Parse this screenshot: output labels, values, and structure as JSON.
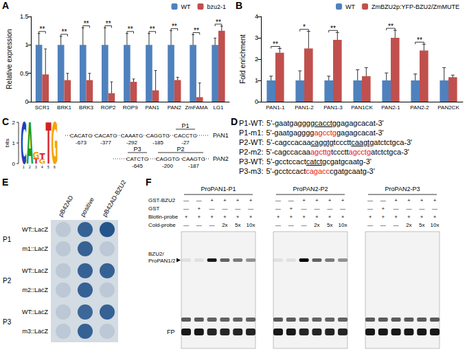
{
  "chart_data": [
    {
      "panel": "A",
      "type": "bar",
      "y_label": "Relative expression",
      "categories": [
        "SCR1",
        "BRK1",
        "BRK3",
        "ROP2",
        "ROP9",
        "PAN1",
        "PAN2",
        "ZmFAMA",
        "LG1"
      ],
      "series": [
        {
          "name": "WT",
          "color": "#4f81bd",
          "values": [
            1,
            1,
            1,
            1,
            1,
            1,
            1,
            1,
            1
          ],
          "errors": [
            0.2,
            0.15,
            0.3,
            0.3,
            0.2,
            0.2,
            0.25,
            0.18,
            0.12
          ]
        },
        {
          "name": "bzu2-1",
          "color": "#c0504d",
          "values": [
            0.48,
            0.38,
            0.38,
            0.15,
            0.35,
            0.2,
            0.38,
            0.08,
            1.25
          ],
          "errors": [
            0.45,
            0.12,
            0.12,
            0.2,
            0.05,
            0.35,
            0.05,
            0.25,
            0.08
          ]
        }
      ],
      "significance": [
        "**",
        "**",
        "**",
        "**",
        "**",
        "**",
        "**",
        "**",
        "**"
      ],
      "ylim": [
        0,
        1.5
      ],
      "yticks": [
        0,
        0.5,
        1,
        1.5
      ],
      "legend": "top",
      "grid": false
    },
    {
      "panel": "B",
      "type": "bar",
      "y_label": "Fold enrichment",
      "categories": [
        "PAN1-1",
        "PAN1-2",
        "PAN1-3",
        "PAN1CK",
        "PAN2-1",
        "PAN2-2",
        "PAN2CK"
      ],
      "series": [
        {
          "name": "WT",
          "color": "#4f81bd",
          "values": [
            1,
            1,
            1,
            1,
            1,
            1,
            1
          ],
          "errors": [
            0.2,
            0.45,
            0.2,
            0.5,
            0.35,
            0.3,
            0.6
          ]
        },
        {
          "name": "ZmBZU2p:YFP-BZU2/ZmMUTE",
          "color": "#c0504d",
          "values": [
            2.3,
            2.5,
            2.9,
            1.2,
            3.0,
            2.4,
            1.15
          ],
          "errors": [
            0.2,
            0.8,
            0.35,
            0.4,
            0.35,
            0.3,
            0.1
          ]
        }
      ],
      "significance": [
        "**",
        "*",
        "**",
        null,
        "**",
        "**",
        null
      ],
      "ylim": [
        0,
        4
      ],
      "yticks": [
        0,
        1,
        2,
        3,
        4
      ],
      "legend": "top",
      "grid": false
    }
  ],
  "panel_C": {
    "panel": "C",
    "logo": {
      "y_label": "bits",
      "ylim": [
        0,
        2
      ],
      "yticks": [
        0,
        1,
        2
      ],
      "positions": [
        {
          "index": 1,
          "letters": [
            {
              "letter": "C",
              "bits": 2
            }
          ]
        },
        {
          "index": 2,
          "letters": [
            {
              "letter": "A",
              "bits": 2
            }
          ]
        },
        {
          "index": 3,
          "letters": [
            {
              "letter": "T",
              "bits": 0.25
            },
            {
              "letter": "G",
              "bits": 0.35
            }
          ]
        },
        {
          "index": 4,
          "letters": [
            {
              "letter": "G",
              "bits": 0.2
            },
            {
              "letter": "T",
              "bits": 0.3
            }
          ]
        },
        {
          "index": 5,
          "letters": [
            {
              "letter": "T",
              "bits": 2
            }
          ]
        },
        {
          "index": 6,
          "letters": [
            {
              "letter": "G",
              "bits": 2
            }
          ]
        }
      ]
    },
    "promoters": [
      {
        "name": "PAN1",
        "motifs": [
          {
            "seq": "CACATG",
            "position": -673
          },
          {
            "seq": "CACATG",
            "position": -377
          },
          {
            "seq": "CAAATG",
            "position": -292
          },
          {
            "seq": "CAGGTG",
            "position": -185
          },
          {
            "seq": "CACCTG",
            "position": -27,
            "probe": "P1"
          }
        ]
      },
      {
        "name": "PAN2",
        "motifs": [
          {
            "seq": "CATCTG",
            "position": -645,
            "probe": "P3"
          },
          {
            "seq": "CAGGTG",
            "position": -200,
            "probe": "P2"
          },
          {
            "seq": "CAAGTG",
            "position": -187,
            "probe": "P2"
          }
        ]
      }
    ]
  },
  "panel_D": {
    "panel": "D",
    "lines": [
      {
        "label": "P1-WT:",
        "segments": [
          {
            "text": "5'-gaatgagggg"
          },
          {
            "text": "cacctg",
            "style": "underline"
          },
          {
            "text": "gagagcacat-3'"
          }
        ]
      },
      {
        "label": "P1-m1:",
        "segments": [
          {
            "text": "5'-gaatgagggg"
          },
          {
            "text": "agcctg",
            "style": "red"
          },
          {
            "text": "gagagcacat-3'"
          }
        ]
      },
      {
        "label": "P2-WT:",
        "segments": [
          {
            "text": "5'-cagccacaa"
          },
          {
            "text": "caggtg",
            "style": "underline"
          },
          {
            "text": "tccctt"
          },
          {
            "text": "caagtg",
            "style": "underline"
          },
          {
            "text": "atctctgca-3'"
          }
        ]
      },
      {
        "label": "P2-m2:",
        "segments": [
          {
            "text": "5'-cagccacaa"
          },
          {
            "text": "agcttg",
            "style": "red"
          },
          {
            "text": "tccctt"
          },
          {
            "text": "agcctg",
            "style": "red"
          },
          {
            "text": "atctctgca-3'"
          }
        ]
      },
      {
        "label": "P3-WT:",
        "segments": [
          {
            "text": "5'-gcctccact"
          },
          {
            "text": "catctg",
            "style": "underline"
          },
          {
            "text": "cgatgcaatg-3'"
          }
        ]
      },
      {
        "label": "P3-m3:",
        "segments": [
          {
            "text": "5'-gcctccact"
          },
          {
            "text": "cagacc",
            "style": "red"
          },
          {
            "text": "cgatgcaatg-3'"
          }
        ]
      }
    ]
  },
  "panel_E": {
    "panel": "E",
    "columns": [
      "pB42AD",
      "positive",
      "pB42AD-BZU2"
    ],
    "groups": [
      {
        "label": "P1",
        "rows": [
          {
            "label": "WT::LacZ",
            "spots": [
              0.1,
              0.9,
              1
            ]
          },
          {
            "label": "m1::LacZ",
            "spots": [
              0.1,
              0.9,
              0.1
            ]
          }
        ]
      },
      {
        "label": "P2",
        "rows": [
          {
            "label": "WT::LacZ",
            "spots": [
              0.1,
              0.9,
              0.9
            ]
          },
          {
            "label": "m2::LacZ",
            "spots": [
              0.1,
              0.9,
              0.1
            ]
          }
        ]
      },
      {
        "label": "P3",
        "rows": [
          {
            "label": "WT::LacZ",
            "spots": [
              0.1,
              0.85,
              0.9
            ]
          },
          {
            "label": "m3::LacZ",
            "spots": [
              0.1,
              0.9,
              0.1
            ]
          }
        ]
      }
    ]
  },
  "panel_F": {
    "panel": "F",
    "row_labels": [
      "GST-BZU2",
      "GST",
      "Biotin-probe",
      "Cold-probe"
    ],
    "shift_label": [
      "BZU2/",
      "ProPAN1/2"
    ],
    "free_probe_label": "FP",
    "gels": [
      {
        "title": "ProPAN1-P1",
        "lanes": [
          [
            "—",
            "—",
            "+",
            "+",
            "+",
            "+"
          ],
          [
            "—",
            "+",
            "—",
            "—",
            "—",
            "—"
          ],
          [
            "+",
            "+",
            "+",
            "+",
            "+",
            "+"
          ],
          [
            "—",
            "—",
            "—",
            "2x",
            "5x",
            "10x"
          ]
        ],
        "shift_band": [
          0.08,
          0.08,
          0.9,
          0.6,
          0.5,
          0.4
        ],
        "free_probe": [
          0.9,
          0.9,
          0.85,
          0.85,
          0.85,
          0.85
        ]
      },
      {
        "title": "ProPAN2-P2",
        "lanes": [
          [
            "—",
            "—",
            "+",
            "+",
            "+",
            "+"
          ],
          [
            "—",
            "+",
            "—",
            "—",
            "—",
            "—"
          ],
          [
            "+",
            "+",
            "+",
            "+",
            "+",
            "+"
          ],
          [
            "—",
            "—",
            "—",
            "2x",
            "5x",
            "10x"
          ]
        ],
        "shift_band": [
          0.08,
          0.08,
          1,
          0.6,
          0.5,
          0.4
        ],
        "free_probe": [
          0.9,
          0.9,
          0.85,
          0.85,
          0.85,
          0.85
        ]
      },
      {
        "title": "ProPAN2-P3",
        "lanes": [
          [
            "—",
            "—",
            "+",
            "+",
            "+",
            "+"
          ],
          [
            "—",
            "+",
            "—",
            "—",
            "—",
            "—"
          ],
          [
            "+",
            "+",
            "+",
            "+",
            "+",
            "+"
          ],
          [
            "—",
            "—",
            "—",
            "2x",
            "5x",
            "10x"
          ]
        ],
        "shift_band": [
          0,
          0,
          0,
          0,
          0,
          0
        ],
        "free_probe": [
          0.9,
          0.9,
          0.9,
          0.9,
          0.9,
          0.9
        ]
      }
    ]
  }
}
